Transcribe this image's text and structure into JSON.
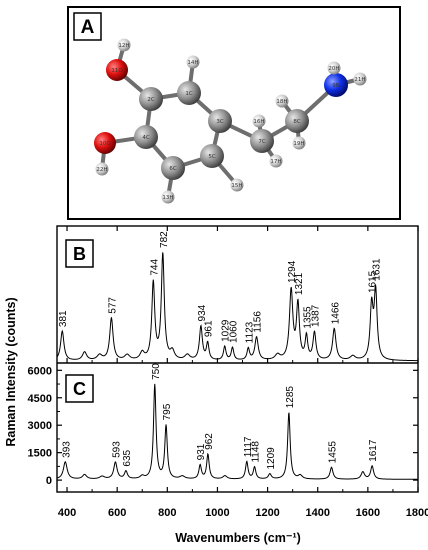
{
  "panels": {
    "a": {
      "label": "A",
      "atoms": [
        {
          "id": "12H",
          "el": "H"
        },
        {
          "id": "11O",
          "el": "O"
        },
        {
          "id": "14H",
          "el": "H"
        },
        {
          "id": "2C",
          "el": "C"
        },
        {
          "id": "1C",
          "el": "C"
        },
        {
          "id": "4C",
          "el": "C"
        },
        {
          "id": "10O",
          "el": "O"
        },
        {
          "id": "22H",
          "el": "H"
        },
        {
          "id": "3C",
          "el": "C"
        },
        {
          "id": "6C",
          "el": "C"
        },
        {
          "id": "5C",
          "el": "C"
        },
        {
          "id": "13H",
          "el": "H"
        },
        {
          "id": "15H",
          "el": "H"
        },
        {
          "id": "7C",
          "el": "C"
        },
        {
          "id": "16H",
          "el": "H"
        },
        {
          "id": "17H",
          "el": "H"
        },
        {
          "id": "8C",
          "el": "C"
        },
        {
          "id": "18H",
          "el": "H"
        },
        {
          "id": "19H",
          "el": "H"
        },
        {
          "id": "9N",
          "el": "N"
        },
        {
          "id": "20H",
          "el": "H"
        },
        {
          "id": "21H",
          "el": "H"
        }
      ],
      "element_colors": {
        "C": "#8e8e8e",
        "H": "#cfcfcf",
        "O": "#e01010",
        "N": "#1030e8"
      }
    },
    "b": {
      "label": "B"
    },
    "c": {
      "label": "C"
    }
  },
  "chart_data": {
    "type": "line",
    "xlabel": "Wavenumbers (cm⁻¹)",
    "ylabel": "Raman Intensity (counts)",
    "xlim": [
      360,
      1800
    ],
    "xticks": [
      400,
      600,
      800,
      1000,
      1200,
      1400,
      1600,
      1800
    ],
    "series": [
      {
        "panel": "B",
        "ylim": [
          0,
          1.3
        ],
        "show_yticks": false,
        "baseline": 0.02,
        "peaks": [
          {
            "x": 381,
            "h": 0.28,
            "w": 8
          },
          {
            "x": 470,
            "h": 0.08,
            "w": 10
          },
          {
            "x": 530,
            "h": 0.05,
            "w": 12
          },
          {
            "x": 577,
            "h": 0.4,
            "w": 8
          },
          {
            "x": 640,
            "h": 0.05,
            "w": 12
          },
          {
            "x": 700,
            "h": 0.07,
            "w": 10
          },
          {
            "x": 744,
            "h": 0.73,
            "w": 7
          },
          {
            "x": 782,
            "h": 1.0,
            "w": 7
          },
          {
            "x": 820,
            "h": 0.08,
            "w": 10
          },
          {
            "x": 880,
            "h": 0.05,
            "w": 12
          },
          {
            "x": 934,
            "h": 0.32,
            "w": 7
          },
          {
            "x": 961,
            "h": 0.16,
            "w": 6
          },
          {
            "x": 1029,
            "h": 0.13,
            "w": 6
          },
          {
            "x": 1060,
            "h": 0.12,
            "w": 6
          },
          {
            "x": 1123,
            "h": 0.11,
            "w": 6
          },
          {
            "x": 1156,
            "h": 0.22,
            "w": 8
          },
          {
            "x": 1240,
            "h": 0.05,
            "w": 12
          },
          {
            "x": 1294,
            "h": 0.66,
            "w": 8
          },
          {
            "x": 1321,
            "h": 0.52,
            "w": 7
          },
          {
            "x": 1355,
            "h": 0.22,
            "w": 6
          },
          {
            "x": 1387,
            "h": 0.26,
            "w": 7
          },
          {
            "x": 1466,
            "h": 0.3,
            "w": 8
          },
          {
            "x": 1540,
            "h": 0.04,
            "w": 12
          },
          {
            "x": 1615,
            "h": 0.5,
            "w": 7
          },
          {
            "x": 1631,
            "h": 0.64,
            "w": 7
          }
        ],
        "labels": [
          {
            "x": 381,
            "text": "381"
          },
          {
            "x": 577,
            "text": "577"
          },
          {
            "x": 744,
            "text": "744"
          },
          {
            "x": 782,
            "text": "782"
          },
          {
            "x": 934,
            "text": "934"
          },
          {
            "x": 961,
            "text": "961"
          },
          {
            "x": 1029,
            "text": "1029"
          },
          {
            "x": 1060,
            "text": "1060"
          },
          {
            "x": 1123,
            "text": "1123"
          },
          {
            "x": 1156,
            "text": "1156"
          },
          {
            "x": 1294,
            "text": "1294"
          },
          {
            "x": 1321,
            "text": "1321"
          },
          {
            "x": 1355,
            "text": "1355"
          },
          {
            "x": 1387,
            "text": "1387"
          },
          {
            "x": 1466,
            "text": "1466"
          },
          {
            "x": 1615,
            "text": "1615"
          },
          {
            "x": 1631,
            "text": "1631"
          }
        ]
      },
      {
        "panel": "C",
        "ylim": [
          -650,
          6400
        ],
        "yticks": [
          0,
          1500,
          3000,
          4500,
          6000
        ],
        "show_yticks": true,
        "baseline": 40,
        "peaks": [
          {
            "x": 393,
            "h": 950,
            "w": 9
          },
          {
            "x": 470,
            "h": 250,
            "w": 10
          },
          {
            "x": 540,
            "h": 150,
            "w": 12
          },
          {
            "x": 593,
            "h": 920,
            "w": 8
          },
          {
            "x": 635,
            "h": 420,
            "w": 7
          },
          {
            "x": 700,
            "h": 150,
            "w": 10
          },
          {
            "x": 750,
            "h": 5150,
            "w": 6
          },
          {
            "x": 795,
            "h": 2900,
            "w": 6
          },
          {
            "x": 860,
            "h": 150,
            "w": 12
          },
          {
            "x": 931,
            "h": 750,
            "w": 6
          },
          {
            "x": 962,
            "h": 1350,
            "w": 6
          },
          {
            "x": 1030,
            "h": 180,
            "w": 10
          },
          {
            "x": 1117,
            "h": 950,
            "w": 6
          },
          {
            "x": 1148,
            "h": 650,
            "w": 6
          },
          {
            "x": 1209,
            "h": 280,
            "w": 7
          },
          {
            "x": 1285,
            "h": 3650,
            "w": 6
          },
          {
            "x": 1330,
            "h": 200,
            "w": 10
          },
          {
            "x": 1455,
            "h": 650,
            "w": 7
          },
          {
            "x": 1580,
            "h": 400,
            "w": 8
          },
          {
            "x": 1617,
            "h": 720,
            "w": 7
          }
        ],
        "labels": [
          {
            "x": 393,
            "text": "393"
          },
          {
            "x": 593,
            "text": "593"
          },
          {
            "x": 635,
            "text": "635"
          },
          {
            "x": 750,
            "text": "750"
          },
          {
            "x": 795,
            "text": "795"
          },
          {
            "x": 931,
            "text": "931"
          },
          {
            "x": 962,
            "text": "962"
          },
          {
            "x": 1117,
            "text": "1117"
          },
          {
            "x": 1148,
            "text": "1148"
          },
          {
            "x": 1209,
            "text": "1209"
          },
          {
            "x": 1285,
            "text": "1285"
          },
          {
            "x": 1455,
            "text": "1455"
          },
          {
            "x": 1617,
            "text": "1617"
          }
        ]
      }
    ]
  }
}
